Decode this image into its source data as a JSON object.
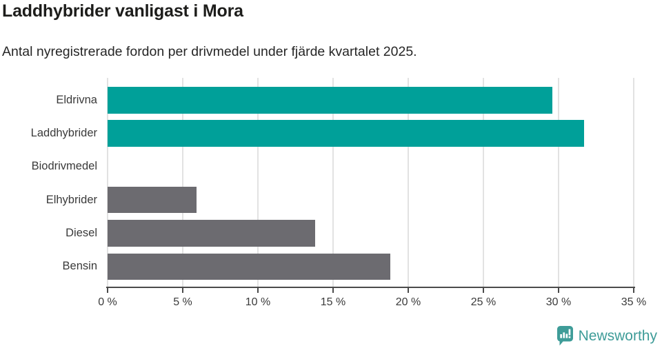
{
  "header": {
    "title": "Laddhybrider vanligast i Mora",
    "subtitle": "Antal nyregistrerade fordon per drivmedel under fjärde kvartalet 2025."
  },
  "chart_data": {
    "type": "bar",
    "orientation": "horizontal",
    "title": "Laddhybrider vanligast i Mora",
    "subtitle": "Antal nyregistrerade fordon per drivmedel under fjärde kvartalet 2025.",
    "categories": [
      "Eldrivna",
      "Laddhybrider",
      "Biodrivmedel",
      "Elhybrider",
      "Diesel",
      "Bensin"
    ],
    "values": [
      29.6,
      31.7,
      0,
      5.9,
      13.8,
      18.8
    ],
    "unit": "%",
    "bar_colors": [
      "#00a099",
      "#00a099",
      "#6c6b70",
      "#6c6b70",
      "#6c6b70",
      "#6c6b70"
    ],
    "xlabel": "",
    "ylabel": "",
    "xlim": [
      0,
      35
    ],
    "xticks": [
      0,
      5,
      10,
      15,
      20,
      25,
      30,
      35
    ],
    "xtick_suffix": " %",
    "grid": true,
    "legend": false
  },
  "branding": {
    "name": "Newsworthy",
    "icon": "newsworthy-chart-bubble-icon",
    "color": "#3e9c98"
  },
  "colors": {
    "highlight_bar": "#00a099",
    "default_bar": "#6c6b70",
    "gridline": "#e2e2e2",
    "axis": "#4a4a4a",
    "title_text": "#1d1d1b",
    "body_text": "#3a3a3a"
  }
}
